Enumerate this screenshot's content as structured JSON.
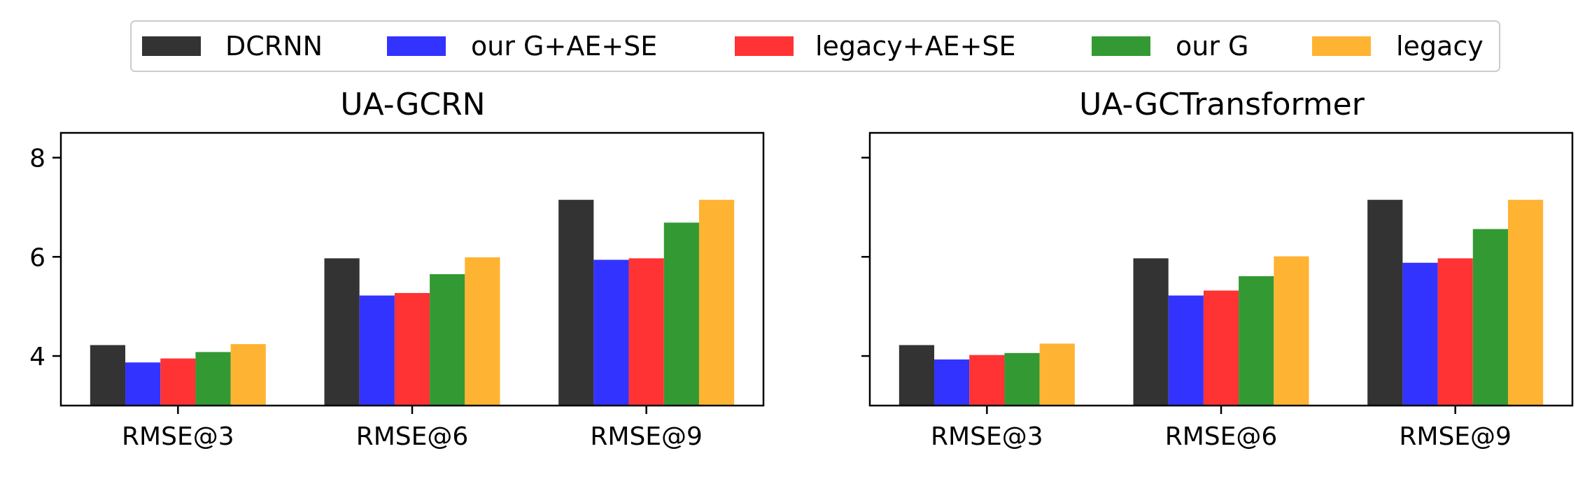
{
  "legend": {
    "entries": [
      {
        "label": "DCRNN",
        "color": "#333333"
      },
      {
        "label": "our G+AE+SE",
        "color": "#3333ff"
      },
      {
        "label": "legacy+AE+SE",
        "color": "#ff3333"
      },
      {
        "label": "our G",
        "color": "#339933"
      },
      {
        "label": "legacy",
        "color": "#ffb333"
      }
    ],
    "placement": "top-center"
  },
  "chart_data": [
    {
      "type": "bar",
      "title": "UA-GCRN",
      "categories": [
        "RMSE@3",
        "RMSE@6",
        "RMSE@9"
      ],
      "ylim": [
        3,
        8.5
      ],
      "yticks": [
        4,
        6,
        8
      ],
      "ytick_labels": [
        "4",
        "6",
        "8"
      ],
      "grid": false,
      "series": [
        {
          "name": "DCRNN",
          "color": "#333333",
          "values": [
            4.22,
            5.97,
            7.15
          ]
        },
        {
          "name": "our G+AE+SE",
          "color": "#3333ff",
          "values": [
            3.87,
            5.22,
            5.94
          ]
        },
        {
          "name": "legacy+AE+SE",
          "color": "#ff3333",
          "values": [
            3.95,
            5.27,
            5.97
          ]
        },
        {
          "name": "our G",
          "color": "#339933",
          "values": [
            4.08,
            5.65,
            6.69
          ]
        },
        {
          "name": "legacy",
          "color": "#ffb333",
          "values": [
            4.24,
            5.99,
            7.15
          ]
        }
      ]
    },
    {
      "type": "bar",
      "title": "UA-GCTransformer",
      "categories": [
        "RMSE@3",
        "RMSE@6",
        "RMSE@9"
      ],
      "ylim": [
        3,
        8.5
      ],
      "yticks": [
        4,
        6,
        8
      ],
      "ytick_labels": [
        "",
        "",
        ""
      ],
      "grid": false,
      "series": [
        {
          "name": "DCRNN",
          "color": "#333333",
          "values": [
            4.22,
            5.97,
            7.15
          ]
        },
        {
          "name": "our G+AE+SE",
          "color": "#3333ff",
          "values": [
            3.93,
            5.22,
            5.88
          ]
        },
        {
          "name": "legacy+AE+SE",
          "color": "#ff3333",
          "values": [
            4.02,
            5.32,
            5.97
          ]
        },
        {
          "name": "our G",
          "color": "#339933",
          "values": [
            4.06,
            5.61,
            6.56
          ]
        },
        {
          "name": "legacy",
          "color": "#ffb333",
          "values": [
            4.25,
            6.01,
            7.15
          ]
        }
      ]
    }
  ]
}
